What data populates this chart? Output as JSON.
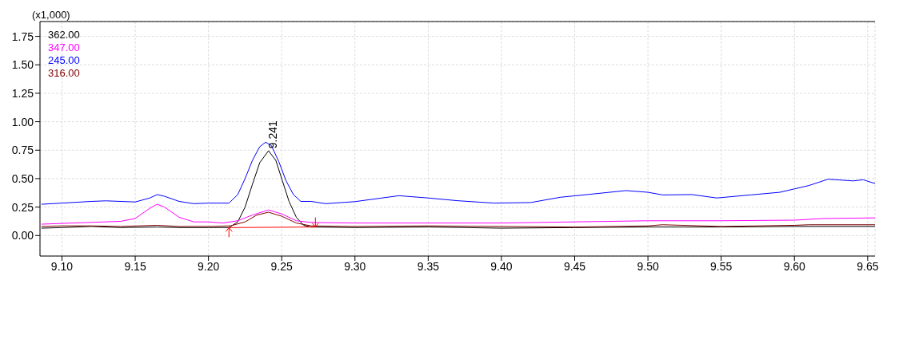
{
  "chart_data": {
    "type": "line",
    "ylabel": "(x1,000)",
    "xlim": [
      9.085,
      9.655
    ],
    "xticks": [
      {
        "value": 9.1,
        "label": "9.10"
      },
      9.15,
      {
        "value": 9.2,
        "label": "9.20"
      },
      9.25,
      {
        "value": 9.3,
        "label": "9.30"
      },
      9.35,
      {
        "value": 9.4,
        "label": "9.40"
      },
      9.45,
      {
        "value": 9.5,
        "label": "9.50"
      },
      9.55,
      {
        "value": 9.6,
        "label": "9.60"
      },
      9.65
    ],
    "ylim": [
      -0.18,
      1.88
    ],
    "yticks": [
      {
        "value": 0,
        "label": "0.00"
      },
      0.25,
      {
        "value": 0.5,
        "label": "0.50"
      },
      0.75,
      {
        "value": 1,
        "label": "1.00"
      },
      1.25,
      {
        "value": 1.5,
        "label": "1.50"
      },
      1.75
    ],
    "grid": true,
    "legend": "top left",
    "marker": "none",
    "line_style": "solid",
    "annotations": [
      {
        "text": "9.241",
        "x": 9.241,
        "y": 0.75
      }
    ],
    "series": [
      {
        "name": "362.00",
        "color": "#000000",
        "x": [
          9.086,
          9.1,
          9.12,
          9.14,
          9.165,
          9.18,
          9.2,
          9.214,
          9.22,
          9.225,
          9.23,
          9.235,
          9.241,
          9.246,
          9.25,
          9.255,
          9.26,
          9.265,
          9.27,
          9.3,
          9.35,
          9.4,
          9.45,
          9.5,
          9.55,
          9.6,
          9.655
        ],
        "values": [
          0.065,
          0.07,
          0.08,
          0.07,
          0.075,
          0.07,
          0.07,
          0.07,
          0.12,
          0.25,
          0.45,
          0.64,
          0.745,
          0.66,
          0.5,
          0.3,
          0.16,
          0.09,
          0.075,
          0.07,
          0.075,
          0.065,
          0.07,
          0.075,
          0.075,
          0.08,
          0.08
        ]
      },
      {
        "name": "347.00",
        "color": "#ff00ff",
        "x": [
          9.086,
          9.14,
          9.15,
          9.16,
          9.165,
          9.17,
          9.18,
          9.19,
          9.2,
          9.21,
          9.22,
          9.23,
          9.241,
          9.25,
          9.26,
          9.27,
          9.3,
          9.4,
          9.45,
          9.5,
          9.55,
          9.6,
          9.62,
          9.655
        ],
        "values": [
          0.1,
          0.125,
          0.15,
          0.24,
          0.275,
          0.25,
          0.16,
          0.12,
          0.12,
          0.11,
          0.13,
          0.18,
          0.225,
          0.19,
          0.13,
          0.115,
          0.11,
          0.11,
          0.12,
          0.13,
          0.13,
          0.135,
          0.15,
          0.155
        ]
      },
      {
        "name": "245.00",
        "color": "#0000ff",
        "x": [
          9.086,
          9.1,
          9.12,
          9.13,
          9.15,
          9.16,
          9.165,
          9.17,
          9.18,
          9.19,
          9.2,
          9.214,
          9.22,
          9.225,
          9.23,
          9.235,
          9.239,
          9.243,
          9.248,
          9.253,
          9.258,
          9.263,
          9.27,
          9.28,
          9.3,
          9.33,
          9.35,
          9.37,
          9.395,
          9.42,
          9.44,
          9.46,
          9.485,
          9.5,
          9.51,
          9.53,
          9.547,
          9.57,
          9.59,
          9.6,
          9.61,
          9.623,
          9.64,
          9.647,
          9.655
        ],
        "values": [
          0.275,
          0.285,
          0.3,
          0.305,
          0.295,
          0.33,
          0.36,
          0.345,
          0.3,
          0.28,
          0.285,
          0.285,
          0.36,
          0.5,
          0.66,
          0.78,
          0.82,
          0.79,
          0.65,
          0.48,
          0.36,
          0.3,
          0.3,
          0.28,
          0.298,
          0.35,
          0.33,
          0.306,
          0.285,
          0.29,
          0.336,
          0.362,
          0.395,
          0.38,
          0.357,
          0.36,
          0.33,
          0.357,
          0.38,
          0.41,
          0.44,
          0.495,
          0.48,
          0.49,
          0.457
        ]
      },
      {
        "name": "316.00",
        "color": "#800000",
        "x": [
          9.086,
          9.1,
          9.12,
          9.14,
          9.165,
          9.18,
          9.2,
          9.215,
          9.225,
          9.233,
          9.241,
          9.25,
          9.26,
          9.27,
          9.3,
          9.35,
          9.4,
          9.45,
          9.5,
          9.51,
          9.55,
          9.6,
          9.61,
          9.655
        ],
        "values": [
          0.08,
          0.085,
          0.085,
          0.08,
          0.09,
          0.08,
          0.08,
          0.085,
          0.12,
          0.18,
          0.205,
          0.17,
          0.11,
          0.085,
          0.08,
          0.085,
          0.08,
          0.075,
          0.085,
          0.095,
          0.08,
          0.09,
          0.095,
          0.095
        ]
      },
      {
        "color": "#ff0000",
        "x": [
          9.214,
          9.273
        ],
        "values": [
          0.07,
          0.075
        ]
      }
    ]
  }
}
